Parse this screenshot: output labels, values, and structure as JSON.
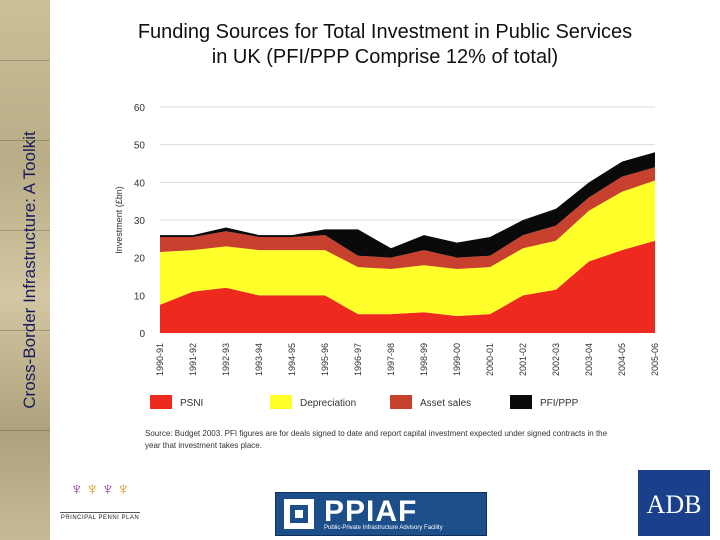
{
  "side_title": "Cross-Border Infrastructure: A Toolkit",
  "title_line1": "Funding Sources for Total Investment in Public Services",
  "title_line2": "in UK (PFI/PPP Comprise 12% of total)",
  "chart_data": {
    "type": "area",
    "stacked": true,
    "ylabel": "Investment (£bn)",
    "ylim": [
      0,
      60
    ],
    "yticks": [
      0,
      10,
      20,
      30,
      40,
      50,
      60
    ],
    "grid": true,
    "legend_position": "bottom",
    "categories": [
      "1990-91",
      "1991-92",
      "1992-93",
      "1993-94",
      "1994-95",
      "1995-96",
      "1996-97",
      "1997-98",
      "1998-99",
      "1999-00",
      "2000-01",
      "2001-02",
      "2002-03",
      "2003-04",
      "2004-05",
      "2005-06"
    ],
    "series": [
      {
        "name": "PSNI",
        "color": "#ee2a1f",
        "values": [
          7.5,
          11,
          12,
          10,
          10,
          10,
          5,
          5,
          5.5,
          4.5,
          5,
          10,
          11.5,
          19,
          22,
          24.5
        ]
      },
      {
        "name": "Depreciation",
        "color": "#ffff2a",
        "values": [
          14,
          11,
          11,
          12,
          12,
          12,
          12.5,
          12,
          12.5,
          12.5,
          12.5,
          12.5,
          13,
          13.5,
          15.5,
          16
        ]
      },
      {
        "name": "Asset sales",
        "color": "#c8412f",
        "values": [
          4,
          3.5,
          4,
          3.5,
          3.5,
          4,
          3,
          3,
          4,
          3,
          3,
          3.5,
          4,
          3.5,
          4,
          3.5
        ]
      },
      {
        "name": "PFI/PPP",
        "color": "#0a0a0a",
        "values": [
          0.5,
          0.5,
          1,
          0.5,
          0.5,
          1.5,
          7,
          2.5,
          4,
          4,
          5,
          4,
          4.5,
          4,
          4,
          4
        ]
      }
    ]
  },
  "source_note": "Source: Budget 2003. PFI figures are for deals signed to date and report capital investment expected under signed contracts in the year that investment takes place.",
  "logo_left_caption": "PRINCIPAL PENNI PLAN",
  "ppiaf": {
    "brand": "PPIAF",
    "sub": "Public-Private Infrastructure Advisory Facility"
  },
  "adb": "ADB"
}
